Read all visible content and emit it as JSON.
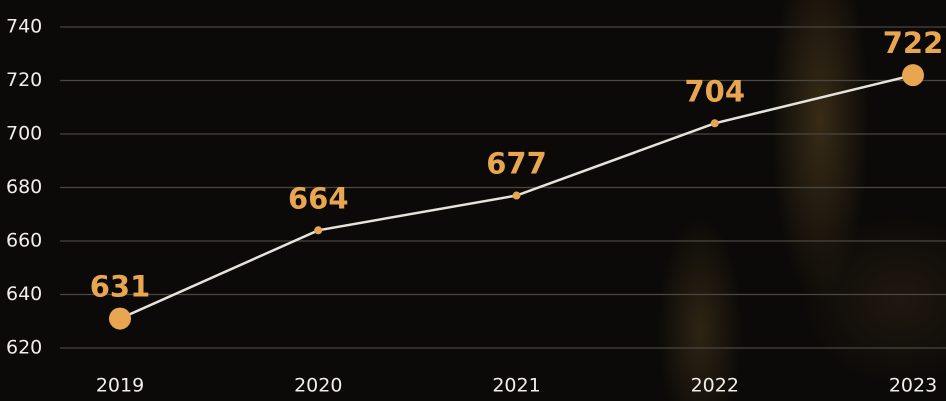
{
  "chart_data": {
    "type": "line",
    "categories": [
      "2019",
      "2020",
      "2021",
      "2022",
      "2023"
    ],
    "values": [
      631,
      664,
      677,
      704,
      722
    ],
    "line_color": "#e6e2dc",
    "marker_color": "#e9a651",
    "label_color": "#e9a651",
    "ylim": [
      620,
      740
    ],
    "yticks": [
      620,
      640,
      660,
      680,
      700,
      720,
      740
    ],
    "grid": true
  }
}
